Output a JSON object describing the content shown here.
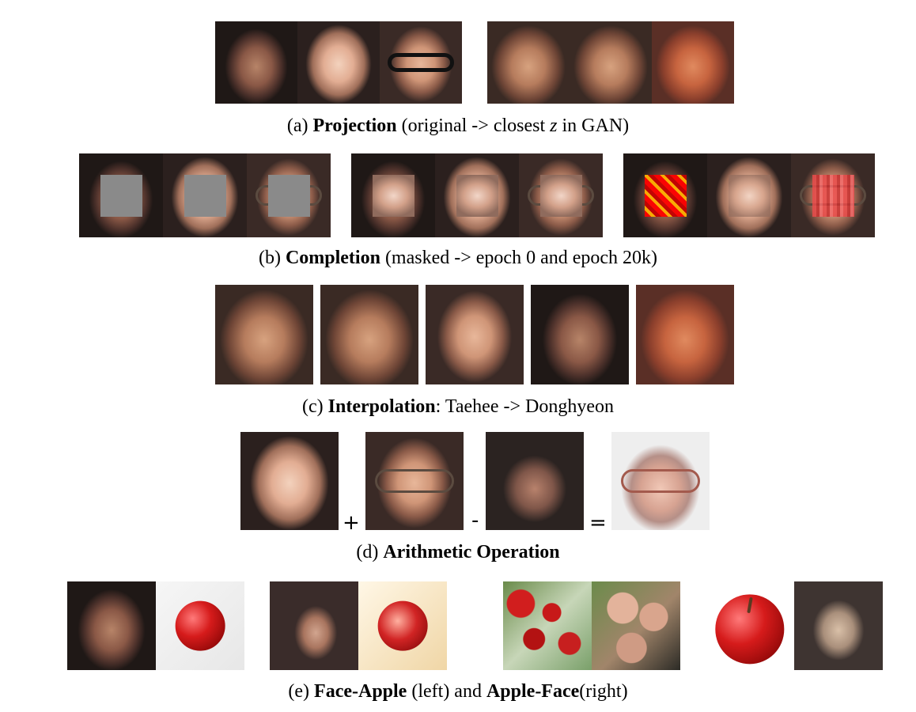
{
  "captions": {
    "a": {
      "prefix": "(a) ",
      "bold": "Projection",
      "rest_1": " (original -> closest ",
      "rest_var": "z",
      "rest_2": " in GAN)"
    },
    "b": {
      "prefix": "(b) ",
      "bold": "Completion",
      "rest": " (masked -> epoch 0 and epoch 20k)"
    },
    "c": {
      "prefix": "(c) ",
      "bold": "Interpolation",
      "rest": ": Taehee -> Donghyeon"
    },
    "d": {
      "prefix": "(d) ",
      "bold": "Arithmetic Operation"
    },
    "e": {
      "prefix": "(e) ",
      "bold_1": "Face-Apple",
      "mid": " (left) and ",
      "bold_2": "Apple-Face",
      "rest": "(right)"
    }
  },
  "operators": {
    "plus": "+",
    "minus": "-",
    "equals": "="
  },
  "icons": {
    "image_placeholder": "photo-placeholder-icon"
  }
}
